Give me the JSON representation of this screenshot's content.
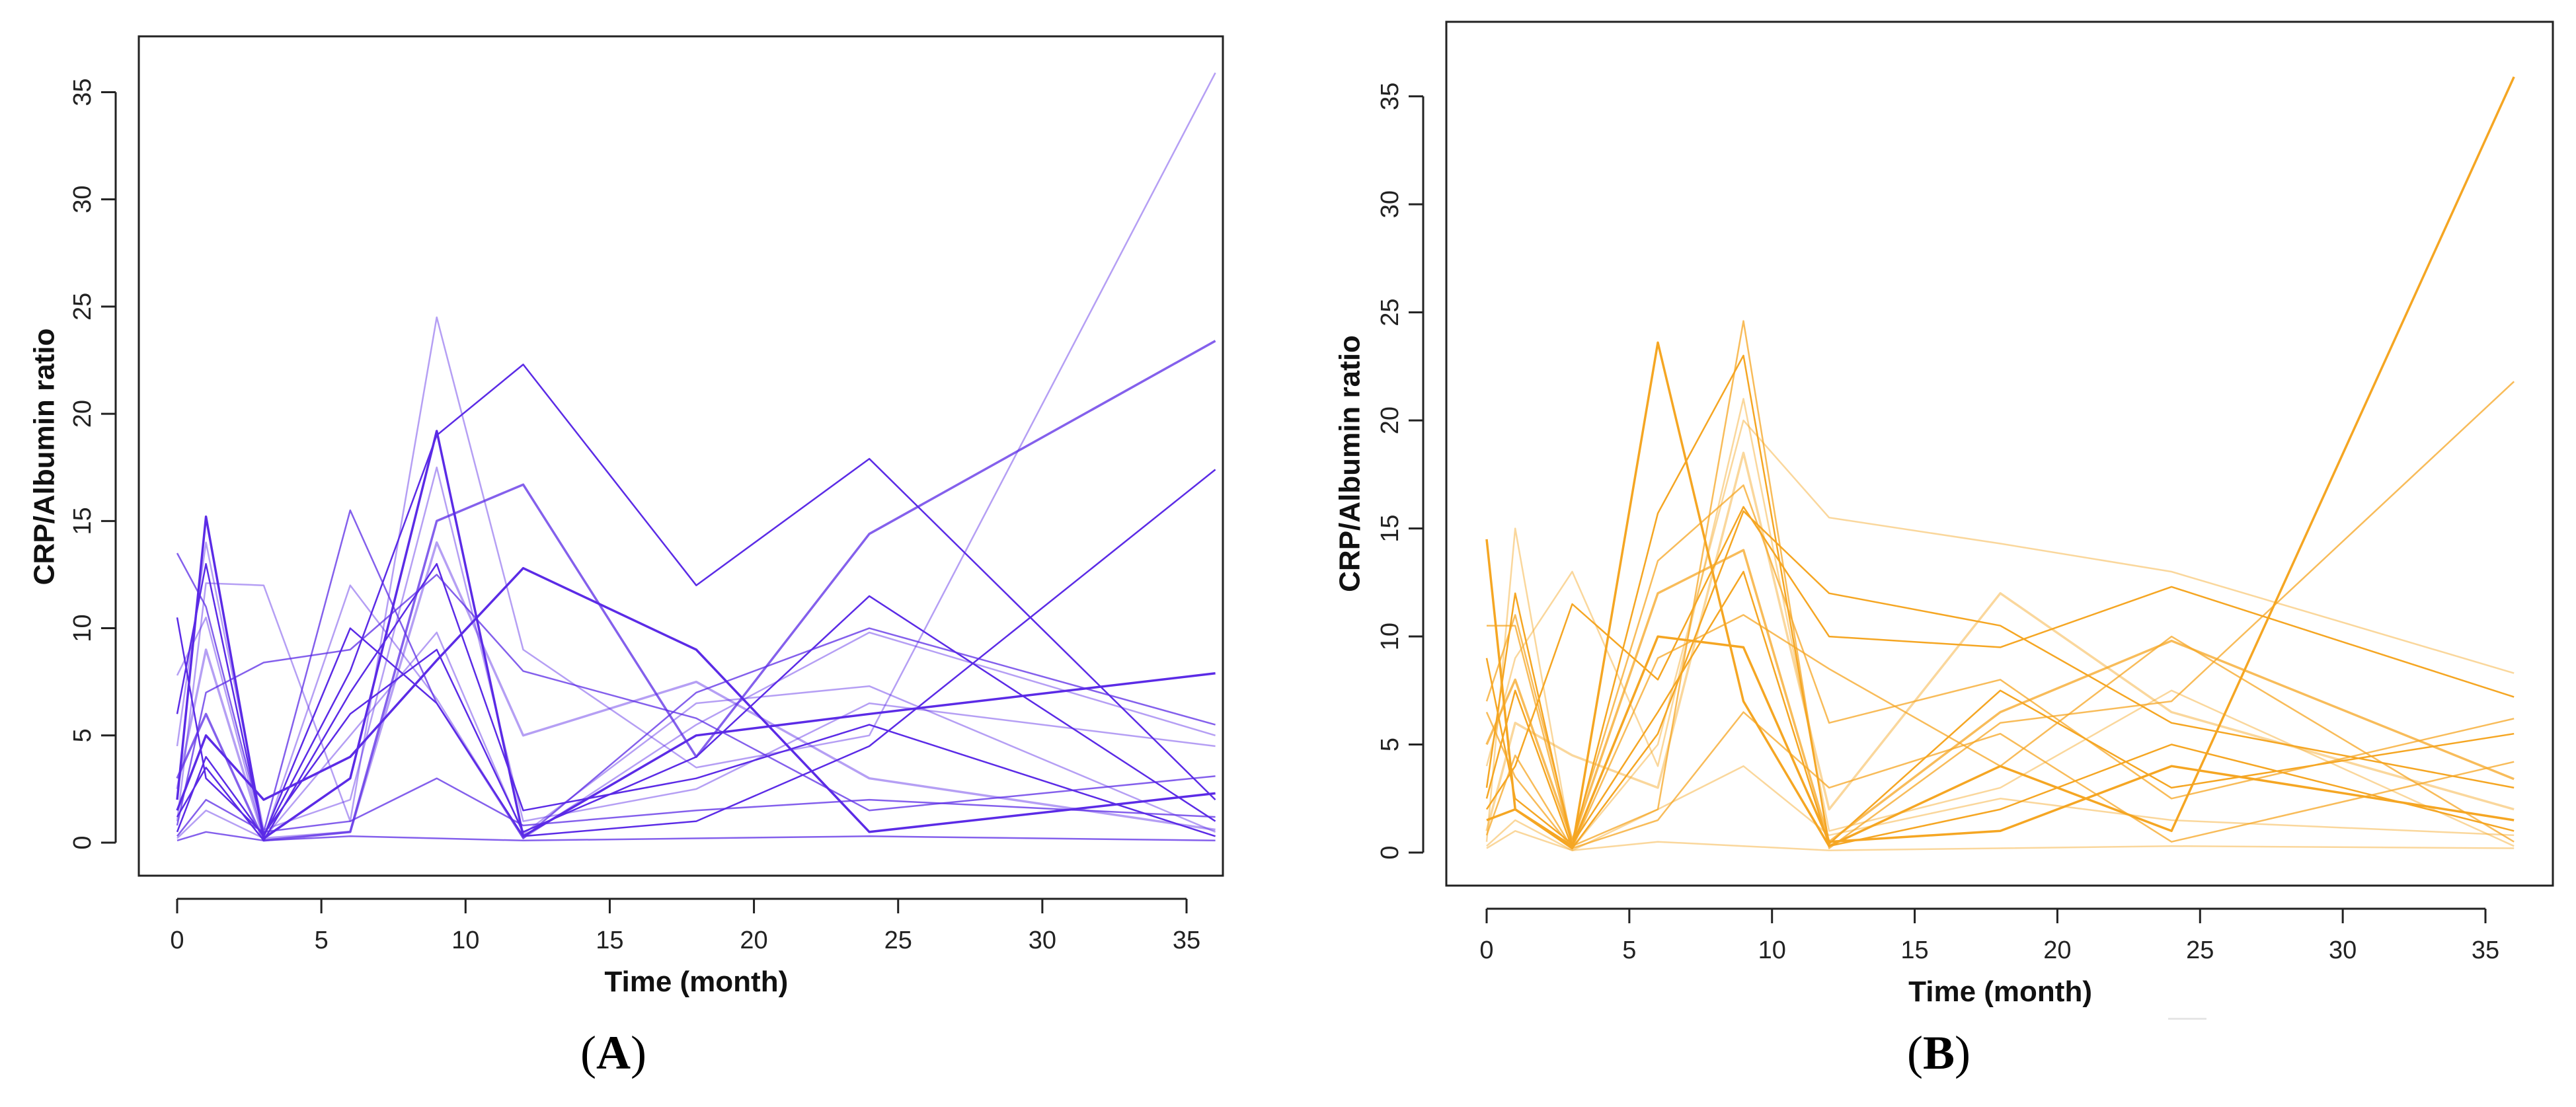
{
  "colors": {
    "panel_a": "#5b2be6",
    "panel_b": "#f5a623",
    "axis": "#222222",
    "background": "#ffffff"
  },
  "panels": [
    {
      "letter": "A"
    },
    {
      "letter": "B"
    }
  ],
  "chart_data": [
    {
      "type": "line",
      "xlabel": "Time (month)",
      "ylabel": "CRP/Albumin ratio",
      "xlim": [
        0,
        36
      ],
      "ylim": [
        0,
        36
      ],
      "xticks": [
        0,
        5,
        10,
        15,
        20,
        25,
        30,
        35
      ],
      "yticks": [
        0,
        5,
        10,
        15,
        20,
        25,
        30,
        35
      ],
      "grid": false,
      "color": "#5b2be6",
      "x": [
        0,
        1,
        3,
        6,
        9,
        12,
        18,
        24,
        36
      ],
      "series": [
        {
          "values": [
            2.0,
            15.2,
            0.2,
            3.0,
            19.2,
            0.3,
            5.0,
            6.0,
            7.9
          ]
        },
        {
          "values": [
            13.5,
            11.0,
            0.5,
            15.5,
            6.5,
            0.2,
            7.0,
            10.0,
            5.5
          ]
        },
        {
          "values": [
            1.0,
            12.1,
            12.0,
            1.0,
            24.5,
            9.0,
            3.5,
            5.0,
            35.9
          ]
        },
        {
          "values": [
            0.5,
            4.0,
            0.3,
            8.0,
            19.0,
            22.3,
            12.0,
            17.9,
            2.0
          ]
        },
        {
          "values": [
            3.0,
            6.0,
            0.1,
            0.5,
            15.0,
            16.7,
            4.0,
            14.4,
            23.4
          ]
        },
        {
          "values": [
            0.2,
            1.5,
            0.2,
            5.0,
            9.8,
            0.4,
            6.5,
            7.3,
            0.5
          ]
        },
        {
          "values": [
            6.0,
            13.0,
            0.3,
            10.0,
            6.5,
            0.3,
            1.0,
            4.5,
            17.4
          ]
        },
        {
          "values": [
            0.8,
            7.0,
            8.4,
            9.0,
            12.5,
            8.0,
            5.8,
            1.5,
            3.1
          ]
        },
        {
          "values": [
            2.5,
            9.0,
            0.2,
            0.5,
            14.0,
            5.0,
            7.5,
            3.0,
            0.6
          ]
        },
        {
          "values": [
            10.5,
            3.0,
            0.4,
            6.0,
            9.0,
            0.5,
            4.0,
            11.5,
            1.0
          ]
        },
        {
          "values": [
            0.1,
            0.5,
            0.1,
            0.3,
            0.2,
            0.1,
            0.2,
            0.3,
            0.1
          ]
        },
        {
          "values": [
            4.5,
            14.0,
            0.6,
            2.0,
            17.5,
            1.0,
            2.5,
            6.5,
            4.5
          ]
        },
        {
          "values": [
            1.5,
            5.0,
            2.0,
            4.0,
            8.5,
            12.8,
            9.0,
            0.5,
            2.3
          ]
        },
        {
          "values": [
            0.3,
            2.0,
            0.5,
            1.0,
            3.0,
            0.8,
            1.5,
            2.0,
            1.2
          ]
        },
        {
          "values": [
            7.8,
            10.5,
            0.2,
            12.0,
            6.7,
            0.2,
            5.5,
            9.8,
            5.0
          ]
        },
        {
          "values": [
            1.2,
            3.5,
            0.1,
            7.0,
            13.0,
            1.5,
            3.0,
            5.5,
            0.3
          ]
        }
      ]
    },
    {
      "type": "line",
      "xlabel": "Time (month)",
      "ylabel": "CRP/Albumin ratio",
      "xlim": [
        0,
        36
      ],
      "ylim": [
        0,
        36
      ],
      "xticks": [
        0,
        5,
        10,
        15,
        20,
        25,
        30,
        35
      ],
      "yticks": [
        0,
        5,
        10,
        15,
        20,
        25,
        30,
        35
      ],
      "grid": false,
      "color": "#f5a623",
      "x": [
        0,
        1,
        3,
        6,
        9,
        12,
        18,
        24,
        36
      ],
      "series": [
        {
          "values": [
            14.5,
            2.0,
            0.2,
            23.6,
            7.0,
            0.3,
            4.0,
            1.0,
            35.9
          ]
        },
        {
          "values": [
            10.5,
            10.5,
            0.3,
            2.0,
            24.6,
            0.2,
            6.0,
            7.0,
            21.8
          ]
        },
        {
          "values": [
            0.5,
            15.0,
            0.2,
            5.0,
            20.0,
            15.5,
            14.3,
            13.0,
            8.3
          ]
        },
        {
          "values": [
            2.0,
            4.0,
            11.5,
            8.0,
            16.0,
            10.0,
            9.5,
            12.3,
            7.2
          ]
        },
        {
          "values": [
            5.0,
            8.0,
            0.5,
            12.0,
            14.0,
            0.5,
            6.5,
            9.8,
            3.4
          ]
        },
        {
          "values": [
            0.2,
            1.0,
            0.1,
            0.5,
            0.3,
            0.1,
            0.2,
            0.3,
            0.2
          ]
        },
        {
          "values": [
            3.0,
            12.0,
            0.3,
            15.7,
            23.0,
            0.4,
            7.5,
            3.0,
            5.5
          ]
        },
        {
          "values": [
            6.5,
            3.5,
            0.2,
            9.0,
            11.0,
            8.5,
            4.0,
            10.0,
            0.5
          ]
        },
        {
          "values": [
            1.0,
            6.0,
            4.5,
            3.0,
            18.5,
            2.0,
            12.0,
            6.5,
            2.0
          ]
        },
        {
          "values": [
            9.0,
            2.5,
            0.4,
            6.5,
            13.0,
            0.3,
            2.0,
            5.0,
            1.0
          ]
        },
        {
          "values": [
            0.8,
            4.5,
            0.2,
            1.5,
            6.5,
            3.0,
            5.5,
            0.5,
            4.2
          ]
        },
        {
          "values": [
            4.0,
            9.0,
            13.0,
            4.0,
            21.0,
            1.0,
            3.0,
            7.5,
            0.3
          ]
        },
        {
          "values": [
            1.5,
            2.0,
            0.3,
            10.0,
            9.5,
            0.5,
            1.0,
            4.0,
            1.5
          ]
        },
        {
          "values": [
            7.0,
            11.0,
            0.6,
            13.5,
            17.0,
            6.0,
            8.0,
            2.5,
            6.2
          ]
        },
        {
          "values": [
            0.3,
            1.5,
            0.1,
            2.0,
            4.0,
            0.8,
            2.5,
            1.5,
            0.8
          ]
        },
        {
          "values": [
            2.5,
            7.5,
            0.2,
            5.5,
            15.8,
            12.0,
            10.5,
            6.0,
            3.0
          ]
        }
      ]
    }
  ]
}
